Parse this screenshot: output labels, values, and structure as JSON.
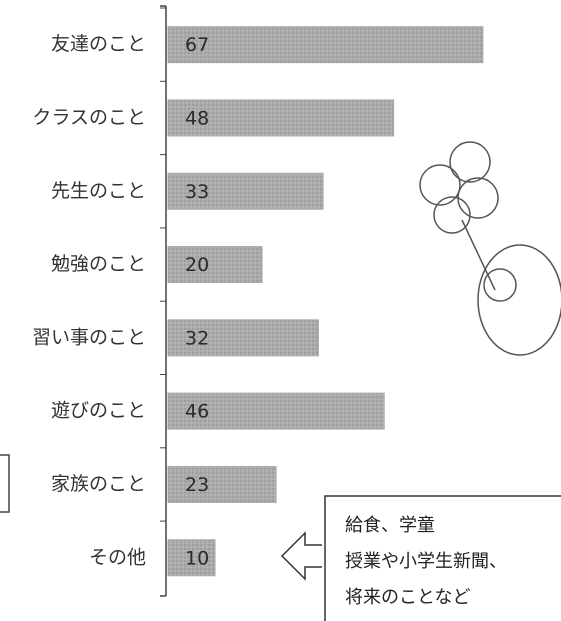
{
  "chart_data": {
    "type": "bar",
    "orientation": "horizontal",
    "categories": [
      "友達のこと",
      "クラスのこと",
      "先生のこと",
      "勉強のこと",
      "習い事のこと",
      "遊びのこと",
      "家族のこと",
      "その他"
    ],
    "values": [
      67,
      48,
      33,
      20,
      32,
      46,
      23,
      10
    ],
    "color": "#a9a9a9",
    "annotation": [
      "給食、学童",
      "授業や小学生新聞、",
      "将来のことなど"
    ]
  }
}
